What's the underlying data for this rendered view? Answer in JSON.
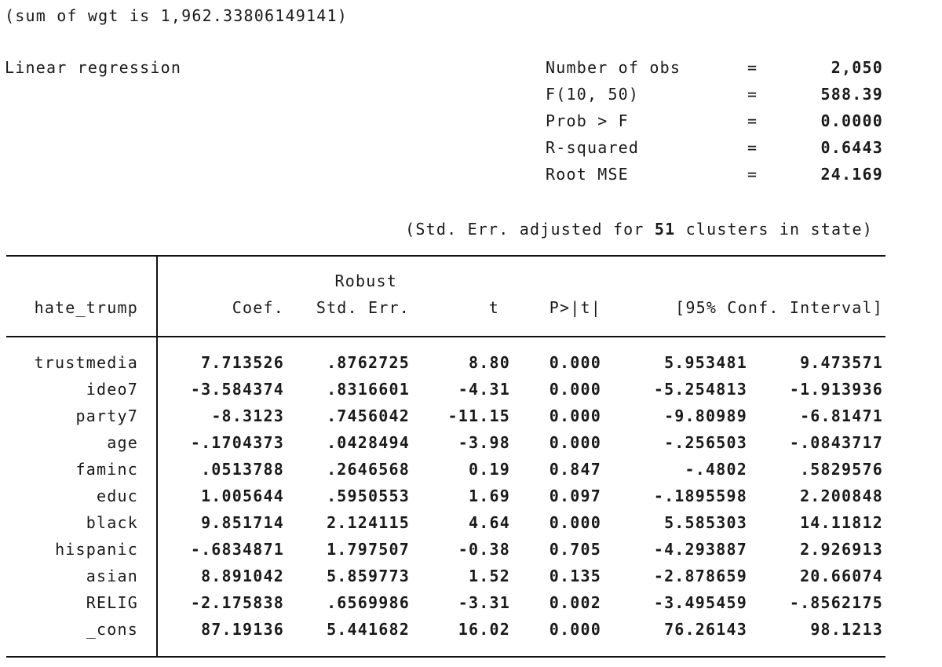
{
  "header": {
    "sum_of_wgt": "(sum of wgt is 1,962.33806149141)",
    "model_title": "Linear regression"
  },
  "stats": [
    {
      "label": "Number of obs",
      "eq": "=",
      "value": "2,050"
    },
    {
      "label": "F(10, 50)",
      "eq": "=",
      "value": "588.39"
    },
    {
      "label": "Prob > F",
      "eq": "=",
      "value": "0.0000"
    },
    {
      "label": "R-squared",
      "eq": "=",
      "value": "0.6443"
    },
    {
      "label": "Root MSE",
      "eq": "=",
      "value": "24.169"
    }
  ],
  "cluster_note": {
    "prefix": "(Std. Err. adjusted for ",
    "count": "51",
    "suffix": " clusters in state)"
  },
  "table": {
    "header_top": {
      "se": "Robust"
    },
    "headers": {
      "dep_var": "hate_trump",
      "coef": "Coef.",
      "se": "Std. Err.",
      "t": "t",
      "p": "P>|t|",
      "ci": "[95% Conf. Interval]"
    },
    "rows": [
      {
        "var": "trustmedia",
        "coef": "7.713526",
        "se": ".8762725",
        "t": "8.80",
        "p": "0.000",
        "lo": "5.953481",
        "hi": "9.473571"
      },
      {
        "var": "ideo7",
        "coef": "-3.584374",
        "se": ".8316601",
        "t": "-4.31",
        "p": "0.000",
        "lo": "-5.254813",
        "hi": "-1.913936"
      },
      {
        "var": "party7",
        "coef": "-8.3123",
        "se": ".7456042",
        "t": "-11.15",
        "p": "0.000",
        "lo": "-9.80989",
        "hi": "-6.81471"
      },
      {
        "var": "age",
        "coef": "-.1704373",
        "se": ".0428494",
        "t": "-3.98",
        "p": "0.000",
        "lo": "-.256503",
        "hi": "-.0843717"
      },
      {
        "var": "faminc",
        "coef": ".0513788",
        "se": ".2646568",
        "t": "0.19",
        "p": "0.847",
        "lo": "-.4802",
        "hi": ".5829576"
      },
      {
        "var": "educ",
        "coef": "1.005644",
        "se": ".5950553",
        "t": "1.69",
        "p": "0.097",
        "lo": "-.1895598",
        "hi": "2.200848"
      },
      {
        "var": "black",
        "coef": "9.851714",
        "se": "2.124115",
        "t": "4.64",
        "p": "0.000",
        "lo": "5.585303",
        "hi": "14.11812"
      },
      {
        "var": "hispanic",
        "coef": "-.6834871",
        "se": "1.797507",
        "t": "-0.38",
        "p": "0.705",
        "lo": "-4.293887",
        "hi": "2.926913"
      },
      {
        "var": "asian",
        "coef": "8.891042",
        "se": "5.859773",
        "t": "1.52",
        "p": "0.135",
        "lo": "-2.878659",
        "hi": "20.66074"
      },
      {
        "var": "RELIG",
        "coef": "-2.175838",
        "se": ".6569986",
        "t": "-3.31",
        "p": "0.002",
        "lo": "-3.495459",
        "hi": "-.8562175"
      },
      {
        "var": "_cons",
        "coef": "87.19136",
        "se": "5.441682",
        "t": "16.02",
        "p": "0.000",
        "lo": "76.26143",
        "hi": "98.1213"
      }
    ]
  }
}
